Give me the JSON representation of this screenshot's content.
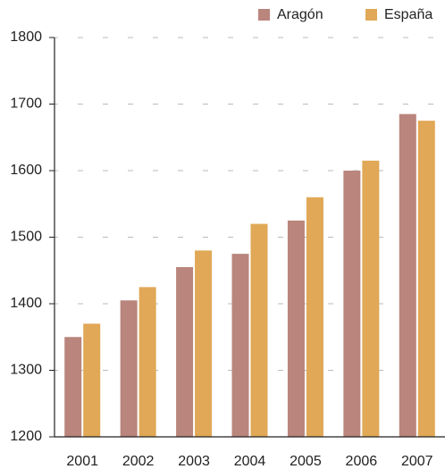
{
  "chart_data": {
    "type": "bar",
    "categories": [
      "2001",
      "2002",
      "2003",
      "2004",
      "2005",
      "2006",
      "2007"
    ],
    "series": [
      {
        "name": "Aragón",
        "color": "#b9857c",
        "values": [
          1350,
          1405,
          1455,
          1475,
          1525,
          1600,
          1685
        ]
      },
      {
        "name": "España",
        "color": "#e0a857",
        "values": [
          1370,
          1425,
          1480,
          1520,
          1560,
          1615,
          1675
        ]
      }
    ],
    "ylim": [
      1200,
      1800
    ],
    "yticks": [
      1200,
      1300,
      1400,
      1500,
      1600,
      1700,
      1800
    ],
    "grid": true,
    "legend": "top-right"
  }
}
